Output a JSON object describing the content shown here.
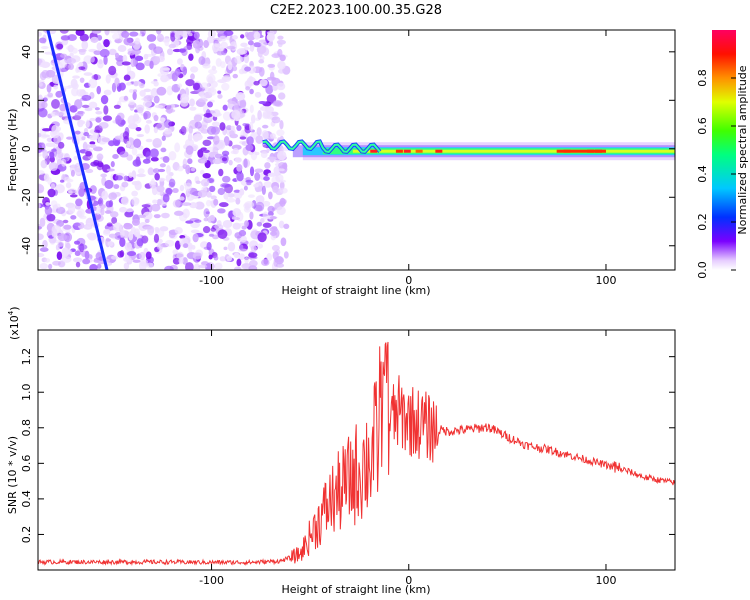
{
  "title": "C2E2.2023.100.00.35.G28",
  "chart_data": [
    {
      "type": "heatmap",
      "xlabel": "Height of straight line (km)",
      "ylabel": "Frequency (Hz)",
      "xlim": [
        -188,
        135
      ],
      "ylim": [
        -50,
        49
      ],
      "xticks": [
        -100,
        0,
        100
      ],
      "yticks": [
        -40,
        -20,
        0,
        20,
        40
      ],
      "colorbar": {
        "label": "Normalized spectral amplitude",
        "range": [
          0,
          1
        ],
        "ticks": [
          "0.0",
          "0.2",
          "0.4",
          "0.6",
          "0.8"
        ],
        "tick_values": [
          0.0,
          0.2,
          0.4,
          0.6,
          0.8
        ]
      },
      "features": [
        {
          "name": "diagonal streak",
          "x_start": -183,
          "y_start": 49,
          "x_end": -153,
          "y_end": -50
        },
        {
          "name": "noise region",
          "x_start": -188,
          "x_end": -62
        },
        {
          "name": "carrier line",
          "x_start": -74,
          "x_end": 135,
          "y": -1
        }
      ]
    },
    {
      "type": "line",
      "xlabel": "Height of straight line (km)",
      "ylabel": "SNR (10 * v/v)",
      "y_scale_label": "(x10",
      "y_scale_exp": "4",
      "y_scale_close": ")",
      "xlim": [
        -188,
        135
      ],
      "ylim": [
        0,
        13500
      ],
      "xticks": [
        -100,
        0,
        100
      ],
      "yticks": [
        0.2,
        0.4,
        0.6,
        0.8,
        1.0,
        1.2
      ],
      "ytick_labels": [
        "0.2",
        "0.4",
        "0.6",
        "0.8",
        "1.0",
        "1.2"
      ],
      "series": [
        {
          "name": "SNR",
          "color": "#f03232",
          "x": [
            -188,
            -160,
            -130,
            -100,
            -80,
            -65,
            -55,
            -48,
            -40,
            -30,
            -20,
            -12,
            -5,
            0,
            10,
            20,
            30,
            40,
            50,
            60,
            70,
            80,
            90,
            100,
            110,
            120,
            135
          ],
          "y": [
            450,
            450,
            450,
            430,
            430,
            500,
            900,
            2300,
            3800,
            5000,
            6300,
            8200,
            8800,
            8500,
            8000,
            7800,
            7900,
            8050,
            7500,
            7000,
            6800,
            6500,
            6200,
            5900,
            5600,
            5200,
            4900
          ]
        }
      ]
    }
  ]
}
